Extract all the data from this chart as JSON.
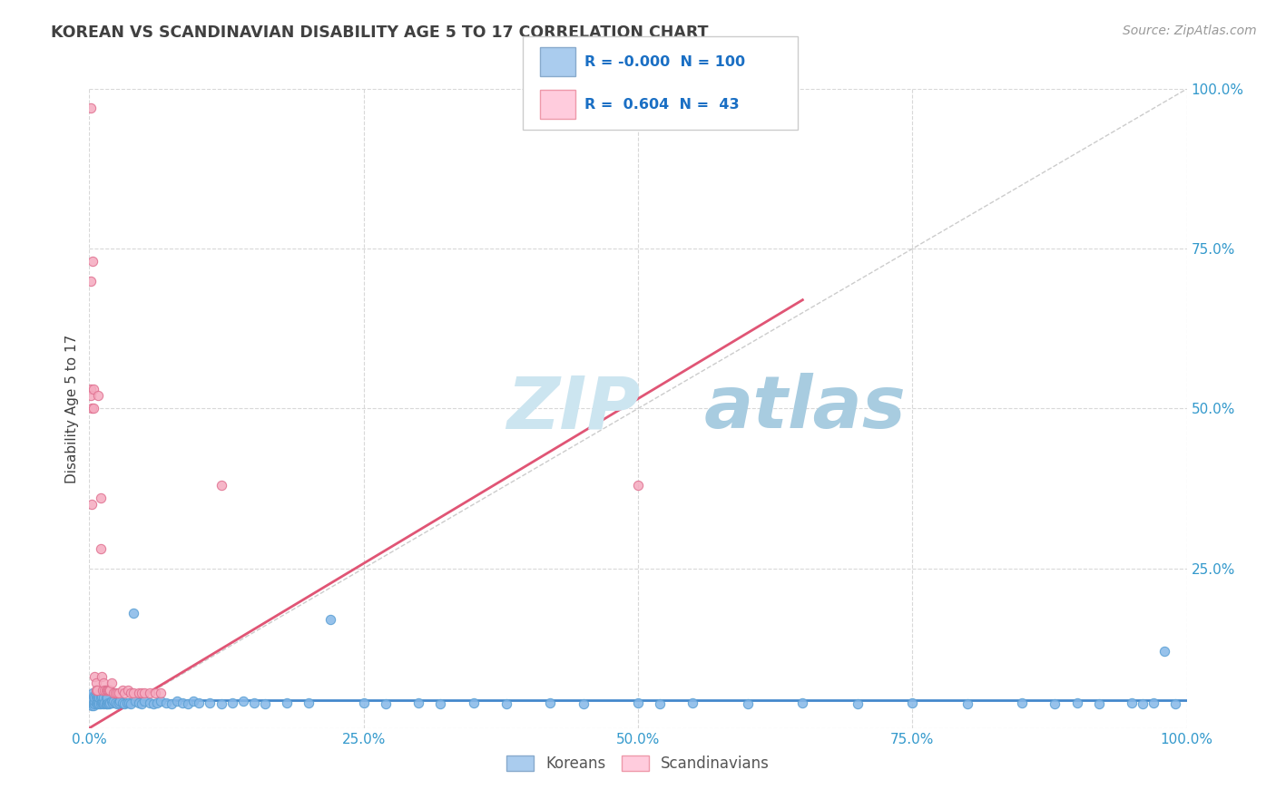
{
  "title": "KOREAN VS SCANDINAVIAN DISABILITY AGE 5 TO 17 CORRELATION CHART",
  "source": "Source: ZipAtlas.com",
  "ylabel": "Disability Age 5 to 17",
  "xlabel": "",
  "background_color": "#ffffff",
  "grid_color": "#d8d8d8",
  "korean_color": "#85b8e8",
  "korean_edge_color": "#5a9fd4",
  "scandinavian_color": "#f5aabf",
  "scandinavian_edge_color": "#e07090",
  "korean_R": -0.0,
  "korean_N": 100,
  "scandinavian_R": 0.604,
  "scandinavian_N": 43,
  "title_color": "#404040",
  "source_color": "#999999",
  "legend_text_color": "#1a6fc4",
  "axis_tick_color": "#3399cc",
  "ylabel_color": "#404040",
  "watermark_zip_color": "#cce5f0",
  "watermark_atlas_color": "#a8cce0",
  "korean_trend_color": "#4488cc",
  "scandinavian_trend_color": "#e05575",
  "diagonal_color": "#cccccc",
  "korean_scatter_x": [
    0.001,
    0.001,
    0.001,
    0.002,
    0.002,
    0.002,
    0.003,
    0.003,
    0.003,
    0.004,
    0.004,
    0.004,
    0.005,
    0.005,
    0.005,
    0.006,
    0.006,
    0.007,
    0.007,
    0.008,
    0.008,
    0.009,
    0.009,
    0.01,
    0.01,
    0.011,
    0.011,
    0.012,
    0.013,
    0.013,
    0.014,
    0.015,
    0.015,
    0.016,
    0.016,
    0.017,
    0.018,
    0.019,
    0.02,
    0.021,
    0.022,
    0.024,
    0.025,
    0.027,
    0.028,
    0.03,
    0.032,
    0.034,
    0.036,
    0.038,
    0.04,
    0.042,
    0.045,
    0.048,
    0.05,
    0.055,
    0.058,
    0.062,
    0.065,
    0.07,
    0.075,
    0.08,
    0.085,
    0.09,
    0.095,
    0.1,
    0.11,
    0.12,
    0.13,
    0.14,
    0.15,
    0.16,
    0.18,
    0.2,
    0.22,
    0.25,
    0.27,
    0.3,
    0.32,
    0.35,
    0.38,
    0.42,
    0.45,
    0.5,
    0.52,
    0.55,
    0.6,
    0.65,
    0.7,
    0.75,
    0.8,
    0.85,
    0.88,
    0.9,
    0.92,
    0.95,
    0.96,
    0.97,
    0.98,
    0.99
  ],
  "korean_scatter_y": [
    0.04,
    0.045,
    0.05,
    0.035,
    0.04,
    0.05,
    0.04,
    0.045,
    0.055,
    0.035,
    0.04,
    0.05,
    0.038,
    0.042,
    0.048,
    0.04,
    0.05,
    0.038,
    0.048,
    0.04,
    0.05,
    0.038,
    0.048,
    0.038,
    0.048,
    0.04,
    0.05,
    0.04,
    0.038,
    0.048,
    0.04,
    0.038,
    0.048,
    0.038,
    0.048,
    0.04,
    0.038,
    0.04,
    0.042,
    0.04,
    0.042,
    0.04,
    0.038,
    0.04,
    0.042,
    0.04,
    0.038,
    0.04,
    0.04,
    0.038,
    0.18,
    0.042,
    0.04,
    0.038,
    0.042,
    0.04,
    0.038,
    0.04,
    0.042,
    0.04,
    0.038,
    0.042,
    0.04,
    0.038,
    0.042,
    0.04,
    0.04,
    0.038,
    0.04,
    0.042,
    0.04,
    0.038,
    0.04,
    0.04,
    0.17,
    0.04,
    0.038,
    0.04,
    0.038,
    0.04,
    0.038,
    0.04,
    0.038,
    0.04,
    0.038,
    0.04,
    0.038,
    0.04,
    0.038,
    0.04,
    0.038,
    0.04,
    0.038,
    0.04,
    0.038,
    0.04,
    0.038,
    0.04,
    0.12,
    0.038
  ],
  "scandinavian_scatter_x": [
    0.001,
    0.001,
    0.001,
    0.001,
    0.002,
    0.002,
    0.003,
    0.004,
    0.004,
    0.005,
    0.006,
    0.006,
    0.007,
    0.008,
    0.01,
    0.01,
    0.011,
    0.012,
    0.013,
    0.014,
    0.015,
    0.016,
    0.017,
    0.018,
    0.019,
    0.02,
    0.022,
    0.024,
    0.025,
    0.027,
    0.03,
    0.032,
    0.035,
    0.038,
    0.04,
    0.045,
    0.048,
    0.05,
    0.055,
    0.06,
    0.065,
    0.12,
    0.5
  ],
  "scandinavian_scatter_y": [
    0.97,
    0.7,
    0.53,
    0.52,
    0.5,
    0.35,
    0.73,
    0.53,
    0.5,
    0.08,
    0.07,
    0.06,
    0.06,
    0.52,
    0.36,
    0.28,
    0.08,
    0.06,
    0.07,
    0.06,
    0.06,
    0.06,
    0.06,
    0.06,
    0.06,
    0.07,
    0.055,
    0.055,
    0.055,
    0.055,
    0.06,
    0.055,
    0.06,
    0.055,
    0.055,
    0.055,
    0.055,
    0.055,
    0.055,
    0.055,
    0.055,
    0.38,
    0.38
  ],
  "xlim": [
    0.0,
    1.0
  ],
  "ylim": [
    0.0,
    1.0
  ],
  "xtick_positions": [
    0.0,
    0.25,
    0.5,
    0.75,
    1.0
  ],
  "xticklabels": [
    "0.0%",
    "25.0%",
    "50.0%",
    "75.0%",
    "100.0%"
  ],
  "ytick_positions": [
    0.25,
    0.5,
    0.75,
    1.0
  ],
  "yticklabels_right": [
    "25.0%",
    "50.0%",
    "75.0%",
    "100.0%"
  ],
  "korean_trend_x": [
    0.0,
    1.0
  ],
  "korean_trend_y": [
    0.043,
    0.043
  ],
  "scandinavian_trend_x": [
    0.0,
    0.65
  ],
  "scandinavian_trend_y": [
    0.0,
    0.67
  ]
}
